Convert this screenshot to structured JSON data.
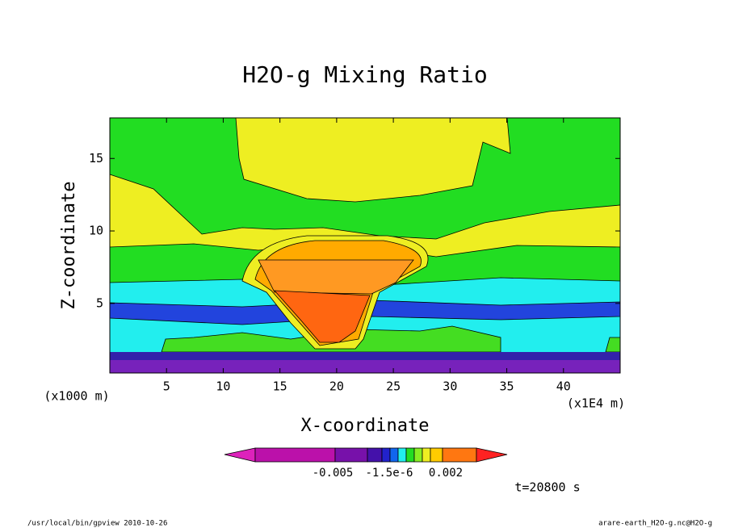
{
  "chart_data": {
    "type": "contour",
    "title": "H2O-g Mixing Ratio",
    "x_label": "X-coordinate",
    "y_label": "Z-coordinate",
    "x_unit_left": "(x1000 m)",
    "x_unit_right": "(x1E4 m)",
    "xlim": [
      0,
      45
    ],
    "xticks": [
      5,
      10,
      15,
      20,
      25,
      30,
      35,
      40
    ],
    "ylim": [
      0.2,
      17.8
    ],
    "yticks": [
      5,
      10,
      15
    ],
    "colorbar_labels": [
      "-0.005",
      "-1.5e-6",
      "0.002"
    ],
    "time_label": "t=20800 s",
    "footer_left": "/usr/local/bin/gpview  2010-10-26",
    "footer_right": "arare-earth_H2O-g.nc@H2O-g"
  }
}
